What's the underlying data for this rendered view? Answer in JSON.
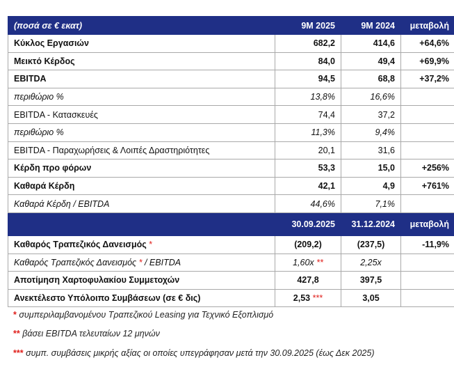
{
  "table1": {
    "header": {
      "label": "(ποσά σε € εκατ)",
      "col1": "9M 2025",
      "col2": "9M 2024",
      "col3": "μεταβολή"
    },
    "rows": [
      {
        "label": "Κύκλος Εργασιών",
        "v1": "682,2",
        "v2": "414,6",
        "v3": "+64,6%"
      },
      {
        "label": "Μεικτό Κέρδος",
        "v1": "84,0",
        "v2": "49,4",
        "v3": "+69,9%"
      },
      {
        "label": "EBITDA",
        "v1": "94,5",
        "v2": "68,8",
        "v3": "+37,2%"
      },
      {
        "label": "περιθώριο %",
        "v1": "13,8%",
        "v2": "16,6%",
        "v3": ""
      },
      {
        "label": "EBITDA - Κατασκευές",
        "v1": "74,4",
        "v2": "37,2",
        "v3": ""
      },
      {
        "label": "περιθώριο %",
        "v1": "11,3%",
        "v2": "9,4%",
        "v3": ""
      },
      {
        "label": "EBITDA - Παραχωρήσεις & Λοιπές Δραστηριότητες",
        "v1": "20,1",
        "v2": "31,6",
        "v3": ""
      },
      {
        "label": "Κέρδη προ φόρων",
        "v1": "53,3",
        "v2": "15,0",
        "v3": "+256%"
      },
      {
        "label": "Καθαρά Κέρδη",
        "v1": "42,1",
        "v2": "4,9",
        "v3": "+761%"
      },
      {
        "label": "Καθαρά Κέρδη / EBITDA",
        "v1": "44,6%",
        "v2": "7,1%",
        "v3": ""
      }
    ]
  },
  "table2": {
    "header": {
      "label": "",
      "col1": "30.09.2025",
      "col2": "31.12.2024",
      "col3": "μεταβολή"
    },
    "rows": [
      {
        "label": "Καθαρός Τραπεζικός Δανεισμός",
        "label_mark": "*",
        "v1": "(209,2)",
        "v1_mark": "",
        "v2": "(237,5)",
        "v3": "-11,9%"
      },
      {
        "label": "Καθαρός Τραπεζικός Δανεισμός",
        "label_mark": "*",
        "label_suffix": "/ EBITDA",
        "v1": "1,60x",
        "v1_mark": "**",
        "v2": "2,25x",
        "v3": ""
      },
      {
        "label": "Αποτίμηση Χαρτοφυλακίου Συμμετοχών",
        "v1": "427,8",
        "v2": "397,5",
        "v3": ""
      },
      {
        "label": "Ανεκτέλεστο Υπόλοιπο Συμβάσεων (σε € δις)",
        "v1": "2,53",
        "v1_mark": "***",
        "v2": "3,05",
        "v3": ""
      }
    ]
  },
  "footnotes": [
    {
      "mark": "*",
      "text": "συμπεριλαμβανομένου Τραπεζικού Leasing για Τεχνικό Εξοπλισμό"
    },
    {
      "mark": "**",
      "text": "βάσει EBITDA τελευταίων 12 μηνών"
    },
    {
      "mark": "***",
      "text": "συμπ. συμβάσεις μικρής αξίας οι οποίες υπεγράφησαν μετά την 30.09.2025 (έως Δεκ 2025)"
    }
  ],
  "colors": {
    "header_bg": "#1f2f86",
    "header_text": "#ffffff",
    "asterisk": "#e0201c",
    "border": "#a9a9a9"
  }
}
